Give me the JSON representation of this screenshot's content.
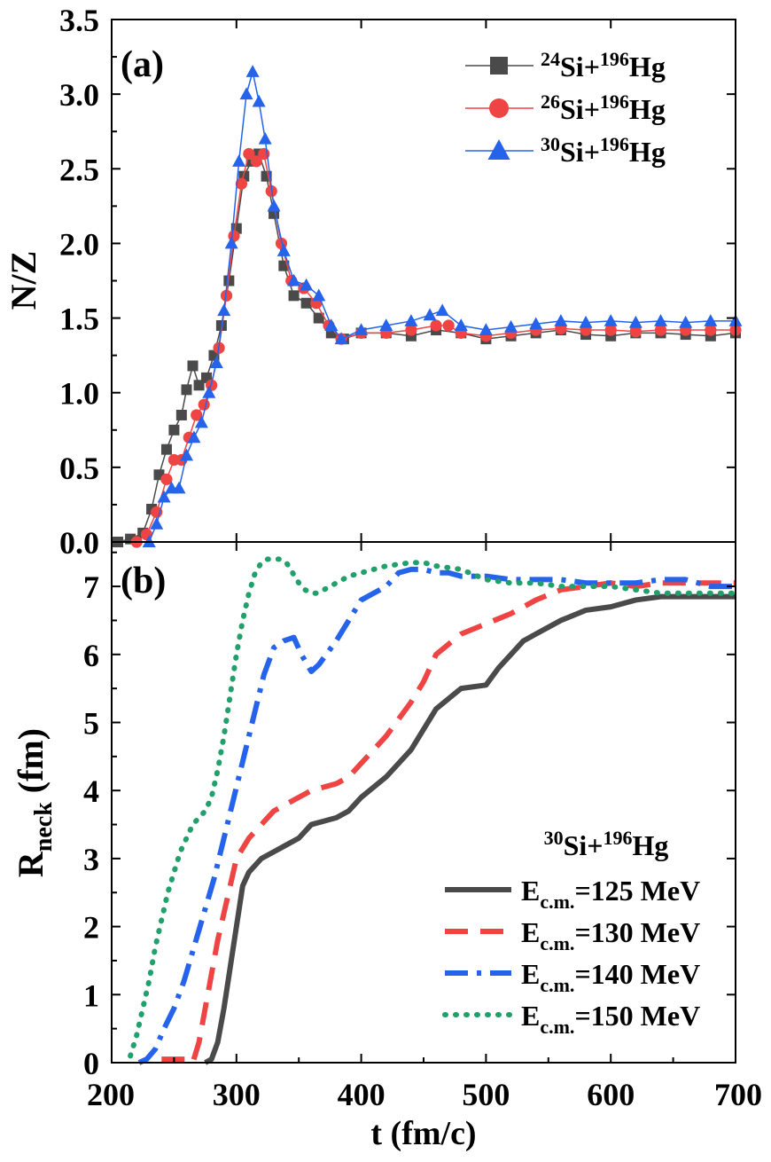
{
  "chart_data": [
    {
      "panel_label": "(a)",
      "type": "scatter",
      "xlim": [
        200,
        700
      ],
      "ylim": [
        0.0,
        3.5
      ],
      "ylabel": "N/Z",
      "yticks": [
        "0.0",
        "0.5",
        "1.0",
        "1.5",
        "2.0",
        "2.5",
        "3.0",
        "3.5"
      ],
      "legend_position": "top-right",
      "series": [
        {
          "name": "24Si+196Hg",
          "name_parts": {
            "m1": "24",
            "e1": "Si+",
            "m2": "196",
            "e2": "Hg"
          },
          "color": "#4a4a4a",
          "marker": "square",
          "x": [
            205,
            215,
            225,
            232,
            238,
            244,
            250,
            256,
            260,
            265,
            270,
            276,
            282,
            288,
            294,
            300,
            306,
            312,
            318,
            324,
            330,
            338,
            346,
            356,
            366,
            376,
            386,
            400,
            420,
            440,
            460,
            480,
            500,
            520,
            540,
            560,
            580,
            600,
            620,
            640,
            660,
            680,
            700
          ],
          "y": [
            0.0,
            0.02,
            0.06,
            0.22,
            0.45,
            0.62,
            0.75,
            0.85,
            1.02,
            1.18,
            1.05,
            1.1,
            1.25,
            1.45,
            1.75,
            2.1,
            2.45,
            2.55,
            2.6,
            2.45,
            2.2,
            1.85,
            1.65,
            1.6,
            1.5,
            1.4,
            1.36,
            1.4,
            1.4,
            1.38,
            1.42,
            1.4,
            1.36,
            1.38,
            1.4,
            1.42,
            1.39,
            1.38,
            1.4,
            1.4,
            1.39,
            1.38,
            1.4
          ]
        },
        {
          "name": "26Si+196Hg",
          "name_parts": {
            "m1": "26",
            "e1": "Si+",
            "m2": "196",
            "e2": "Hg"
          },
          "color": "#ef4444",
          "marker": "circle",
          "x": [
            220,
            228,
            236,
            244,
            250,
            256,
            262,
            268,
            274,
            280,
            286,
            292,
            298,
            304,
            310,
            316,
            322,
            328,
            336,
            344,
            354,
            364,
            374,
            384,
            400,
            420,
            440,
            460,
            470,
            480,
            500,
            520,
            540,
            560,
            580,
            600,
            620,
            640,
            660,
            680,
            700
          ],
          "y": [
            0.0,
            0.05,
            0.2,
            0.42,
            0.55,
            0.55,
            0.7,
            0.85,
            0.92,
            1.05,
            1.3,
            1.65,
            2.05,
            2.4,
            2.6,
            2.55,
            2.6,
            2.35,
            2.0,
            1.75,
            1.7,
            1.6,
            1.45,
            1.36,
            1.4,
            1.4,
            1.42,
            1.45,
            1.45,
            1.4,
            1.38,
            1.4,
            1.42,
            1.43,
            1.42,
            1.42,
            1.41,
            1.42,
            1.42,
            1.42,
            1.42
          ]
        },
        {
          "name": "30Si+196Hg",
          "name_parts": {
            "m1": "30",
            "e1": "Si+",
            "m2": "196",
            "e2": "Hg"
          },
          "color": "#2563eb",
          "marker": "triangle",
          "x": [
            230,
            236,
            242,
            248,
            254,
            260,
            266,
            272,
            278,
            284,
            290,
            296,
            302,
            308,
            313,
            318,
            323,
            330,
            338,
            346,
            356,
            366,
            376,
            384,
            400,
            420,
            440,
            455,
            465,
            480,
            500,
            520,
            540,
            560,
            580,
            600,
            620,
            640,
            660,
            680,
            700
          ],
          "y": [
            0.0,
            0.12,
            0.3,
            0.36,
            0.36,
            0.58,
            0.7,
            0.8,
            1.0,
            1.2,
            1.55,
            2.0,
            2.55,
            3.0,
            3.15,
            2.95,
            2.7,
            2.25,
            1.95,
            1.75,
            1.72,
            1.65,
            1.45,
            1.36,
            1.42,
            1.45,
            1.48,
            1.52,
            1.55,
            1.45,
            1.42,
            1.44,
            1.46,
            1.48,
            1.47,
            1.48,
            1.47,
            1.48,
            1.47,
            1.48,
            1.48
          ]
        }
      ]
    },
    {
      "panel_label": "(b)",
      "type": "line",
      "xlim": [
        200,
        700
      ],
      "ylim": [
        0,
        7.5
      ],
      "xlabel": "t (fm/c)",
      "ylabel": {
        "main": "R",
        "sub": "neck",
        "unit": " (fm)"
      },
      "xticks": [
        "200",
        "300",
        "400",
        "500",
        "600",
        "700"
      ],
      "yticks": [
        "0",
        "1",
        "2",
        "3",
        "4",
        "5",
        "6",
        "7"
      ],
      "legend_title": {
        "m1": "30",
        "e1": "Si+",
        "m2": "196",
        "e2": "Hg"
      },
      "legend_position": "bottom-right",
      "series": [
        {
          "name": "Ec.m.=125 MeV",
          "name_parts": {
            "main": "E",
            "sub": "c.m.",
            "rest": "=125 MeV"
          },
          "color": "#4a4a4a",
          "dash": "solid",
          "x": [
            275,
            280,
            285,
            290,
            295,
            300,
            305,
            310,
            320,
            330,
            340,
            350,
            360,
            370,
            380,
            390,
            400,
            420,
            440,
            460,
            480,
            500,
            510,
            520,
            530,
            540,
            560,
            580,
            600,
            620,
            640,
            660,
            680,
            700
          ],
          "y": [
            0.0,
            0.05,
            0.3,
            0.8,
            1.4,
            2.0,
            2.6,
            2.8,
            3.0,
            3.1,
            3.2,
            3.3,
            3.5,
            3.55,
            3.6,
            3.7,
            3.9,
            4.2,
            4.6,
            5.2,
            5.5,
            5.55,
            5.8,
            6.0,
            6.2,
            6.3,
            6.5,
            6.65,
            6.7,
            6.8,
            6.85,
            6.85,
            6.85,
            6.85
          ]
        },
        {
          "name": "Ec.m.=130 MeV",
          "name_parts": {
            "main": "E",
            "sub": "c.m.",
            "rest": "=130 MeV"
          },
          "color": "#ef4444",
          "dash": "dashed",
          "x": [
            240,
            250,
            260,
            265,
            270,
            275,
            280,
            285,
            290,
            295,
            300,
            310,
            320,
            330,
            340,
            350,
            360,
            370,
            380,
            390,
            400,
            420,
            440,
            450,
            460,
            480,
            500,
            520,
            540,
            560,
            580,
            600,
            620,
            640,
            660,
            680,
            700
          ],
          "y": [
            0.05,
            0.05,
            0.05,
            0.0,
            0.3,
            0.8,
            1.3,
            1.8,
            2.2,
            2.6,
            3.0,
            3.3,
            3.5,
            3.7,
            3.8,
            3.9,
            4.0,
            4.05,
            4.1,
            4.2,
            4.4,
            4.8,
            5.3,
            5.6,
            6.0,
            6.3,
            6.45,
            6.6,
            6.8,
            6.95,
            7.0,
            7.05,
            7.0,
            7.05,
            7.05,
            7.05,
            7.05
          ]
        },
        {
          "name": "Ec.m.=140 MeV",
          "name_parts": {
            "main": "E",
            "sub": "c.m.",
            "rest": "=140 MeV"
          },
          "color": "#2563eb",
          "dash": "dashdot",
          "x": [
            222,
            228,
            235,
            242,
            250,
            258,
            266,
            274,
            282,
            290,
            298,
            306,
            314,
            322,
            330,
            338,
            346,
            352,
            360,
            366,
            372,
            380,
            390,
            400,
            410,
            420,
            430,
            440,
            450,
            460,
            470,
            480,
            500,
            520,
            540,
            560,
            580,
            600,
            620,
            640,
            660,
            680,
            700
          ],
          "y": [
            0.0,
            0.05,
            0.2,
            0.5,
            0.8,
            1.2,
            1.7,
            2.2,
            2.7,
            3.3,
            3.9,
            4.5,
            5.1,
            5.7,
            6.1,
            6.2,
            6.25,
            6.0,
            5.75,
            5.85,
            6.0,
            6.2,
            6.5,
            6.8,
            6.9,
            7.0,
            7.2,
            7.25,
            7.25,
            7.2,
            7.2,
            7.15,
            7.15,
            7.1,
            7.1,
            7.1,
            7.05,
            7.05,
            7.05,
            7.1,
            7.1,
            7.0,
            7.0
          ]
        },
        {
          "name": "Ec.m.=150 MeV",
          "name_parts": {
            "main": "E",
            "sub": "c.m.",
            "rest": "=150 MeV"
          },
          "color": "#22a06b",
          "dash": "dotted",
          "x": [
            215,
            220,
            225,
            230,
            235,
            240,
            245,
            250,
            255,
            260,
            265,
            270,
            275,
            280,
            285,
            290,
            295,
            300,
            305,
            310,
            315,
            320,
            325,
            330,
            335,
            340,
            345,
            350,
            355,
            360,
            365,
            370,
            380,
            390,
            400,
            420,
            440,
            450,
            460,
            480,
            500,
            520,
            540,
            560,
            580,
            600,
            620,
            640,
            660,
            680,
            700
          ],
          "y": [
            0.1,
            0.4,
            0.8,
            1.2,
            1.7,
            2.1,
            2.5,
            2.8,
            3.1,
            3.3,
            3.5,
            3.6,
            3.7,
            3.9,
            4.3,
            4.8,
            5.4,
            6.0,
            6.5,
            6.9,
            7.2,
            7.35,
            7.4,
            7.4,
            7.4,
            7.35,
            7.2,
            7.05,
            6.95,
            6.9,
            6.9,
            6.95,
            7.05,
            7.15,
            7.2,
            7.3,
            7.35,
            7.35,
            7.3,
            7.25,
            7.1,
            7.05,
            7.05,
            7.0,
            7.0,
            7.0,
            6.95,
            6.9,
            6.9,
            6.9,
            6.9
          ]
        }
      ]
    }
  ]
}
